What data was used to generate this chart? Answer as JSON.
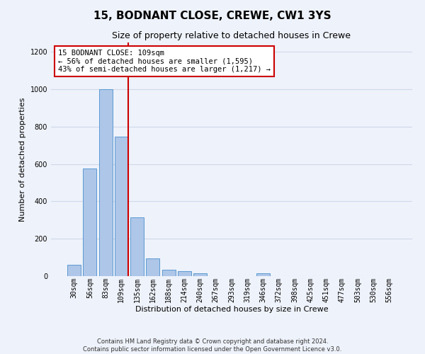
{
  "title": "15, BODNANT CLOSE, CREWE, CW1 3YS",
  "subtitle": "Size of property relative to detached houses in Crewe",
  "xlabel": "Distribution of detached houses by size in Crewe",
  "ylabel": "Number of detached properties",
  "footer_line1": "Contains HM Land Registry data © Crown copyright and database right 2024.",
  "footer_line2": "Contains public sector information licensed under the Open Government Licence v3.0.",
  "bin_labels": [
    "30sqm",
    "56sqm",
    "83sqm",
    "109sqm",
    "135sqm",
    "162sqm",
    "188sqm",
    "214sqm",
    "240sqm",
    "267sqm",
    "293sqm",
    "319sqm",
    "346sqm",
    "372sqm",
    "398sqm",
    "425sqm",
    "451sqm",
    "477sqm",
    "503sqm",
    "530sqm",
    "556sqm"
  ],
  "bar_values": [
    60,
    575,
    1000,
    745,
    315,
    95,
    35,
    25,
    15,
    0,
    0,
    0,
    15,
    0,
    0,
    0,
    0,
    0,
    0,
    0,
    0
  ],
  "bar_color": "#aec6e8",
  "bar_edge_color": "#5b9bd5",
  "red_line_index": 3,
  "annotation_text": "15 BODNANT CLOSE: 109sqm\n← 56% of detached houses are smaller (1,595)\n43% of semi-detached houses are larger (1,217) →",
  "annotation_box_color": "#ffffff",
  "annotation_box_edge_color": "#cc0000",
  "red_line_color": "#cc0000",
  "ylim": [
    0,
    1250
  ],
  "yticks": [
    0,
    200,
    400,
    600,
    800,
    1000,
    1200
  ],
  "grid_color": "#d0d8e8",
  "background_color": "#eef2fa",
  "title_fontsize": 11,
  "subtitle_fontsize": 9,
  "axis_label_fontsize": 8,
  "tick_fontsize": 7,
  "annotation_fontsize": 7.5,
  "footer_fontsize": 6
}
